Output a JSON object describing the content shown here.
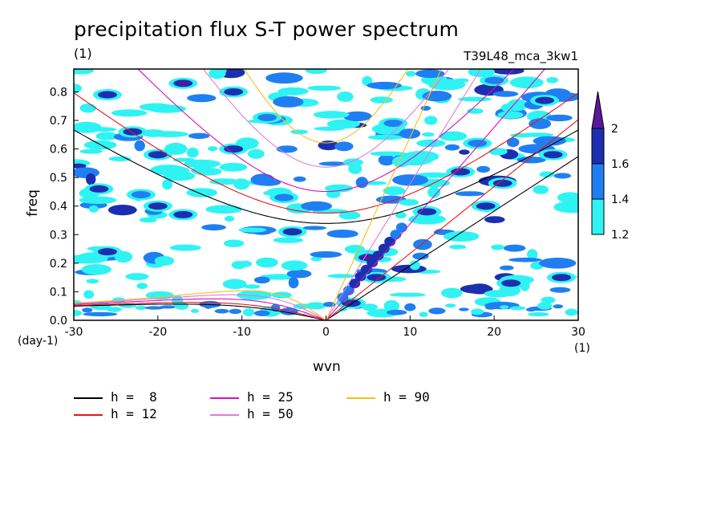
{
  "title": "precipitation flux S-T power spectrum",
  "units_top": "(1)",
  "run_label": "T39L48_mca_3kw1",
  "chart_data": {
    "type": "contour",
    "xlabel": "wvn",
    "ylabel": "freq",
    "x_unit": "(1)",
    "y_unit": "(day-1)",
    "xlim": [
      -30,
      30
    ],
    "ylim": [
      0,
      0.88
    ],
    "xticks": [
      "-30",
      "-20",
      "-10",
      "0",
      "10",
      "20",
      "30"
    ],
    "yticks": [
      "0.0",
      "0.1",
      "0.2",
      "0.3",
      "0.4",
      "0.5",
      "0.6",
      "0.7",
      "0.8"
    ],
    "contour_levels": [
      1.2,
      1.4,
      1.6,
      2
    ],
    "colorbar": {
      "labels": [
        "1.2",
        "1.4",
        "1.6",
        "2"
      ],
      "colors": [
        "#2ff3f3",
        "#1f7ff2",
        "#1c2fb0",
        "#5a189a"
      ]
    },
    "dispersion_curves": [
      {
        "name": "h =  8",
        "h": 8,
        "color": "#000000"
      },
      {
        "name": "h = 12",
        "h": 12,
        "color": "#e8141c"
      },
      {
        "name": "h = 25",
        "h": 25,
        "color": "#d412b8"
      },
      {
        "name": "h = 50",
        "h": 50,
        "color": "#e07ae0"
      },
      {
        "name": "h = 90",
        "h": 90,
        "color": "#f2c21a"
      }
    ],
    "spectral_features": [
      {
        "wvn": -26,
        "freq": 0.79,
        "level": 1.6
      },
      {
        "wvn": -17,
        "freq": 0.83,
        "level": 2.0
      },
      {
        "wvn": -11,
        "freq": 0.8,
        "level": 1.6
      },
      {
        "wvn": -23,
        "freq": 0.66,
        "level": 1.6
      },
      {
        "wvn": -20,
        "freq": 0.58,
        "level": 1.6
      },
      {
        "wvn": -11,
        "freq": 0.6,
        "level": 1.6
      },
      {
        "wvn": -27,
        "freq": 0.46,
        "level": 1.6
      },
      {
        "wvn": -22,
        "freq": 0.44,
        "level": 1.4
      },
      {
        "wvn": -20,
        "freq": 0.4,
        "level": 1.6
      },
      {
        "wvn": -17,
        "freq": 0.37,
        "level": 1.6
      },
      {
        "wvn": -26,
        "freq": 0.24,
        "level": 1.6
      },
      {
        "wvn": -4,
        "freq": 0.31,
        "level": 1.6
      },
      {
        "wvn": -5,
        "freq": 0.43,
        "level": 1.4
      },
      {
        "wvn": 5,
        "freq": 0.22,
        "level": 2.0
      },
      {
        "wvn": 6,
        "freq": 0.15,
        "level": 1.6
      },
      {
        "wvn": 3,
        "freq": 0.06,
        "level": 1.6
      },
      {
        "wvn": 12,
        "freq": 0.38,
        "level": 1.6
      },
      {
        "wvn": 16,
        "freq": 0.52,
        "level": 1.6
      },
      {
        "wvn": 19,
        "freq": 0.4,
        "level": 1.6
      },
      {
        "wvn": 21,
        "freq": 0.48,
        "level": 1.6
      },
      {
        "wvn": 18,
        "freq": 0.62,
        "level": 1.4
      },
      {
        "wvn": 27,
        "freq": 0.58,
        "level": 1.6
      },
      {
        "wvn": 26,
        "freq": 0.77,
        "level": 1.6
      },
      {
        "wvn": 20,
        "freq": 0.84,
        "level": 1.4
      },
      {
        "wvn": 22,
        "freq": 0.13,
        "level": 1.6
      },
      {
        "wvn": 28,
        "freq": 0.15,
        "level": 1.6
      },
      {
        "wvn": -7,
        "freq": 0.71,
        "level": 1.4
      },
      {
        "wvn": 8,
        "freq": 0.69,
        "level": 1.4
      }
    ]
  }
}
